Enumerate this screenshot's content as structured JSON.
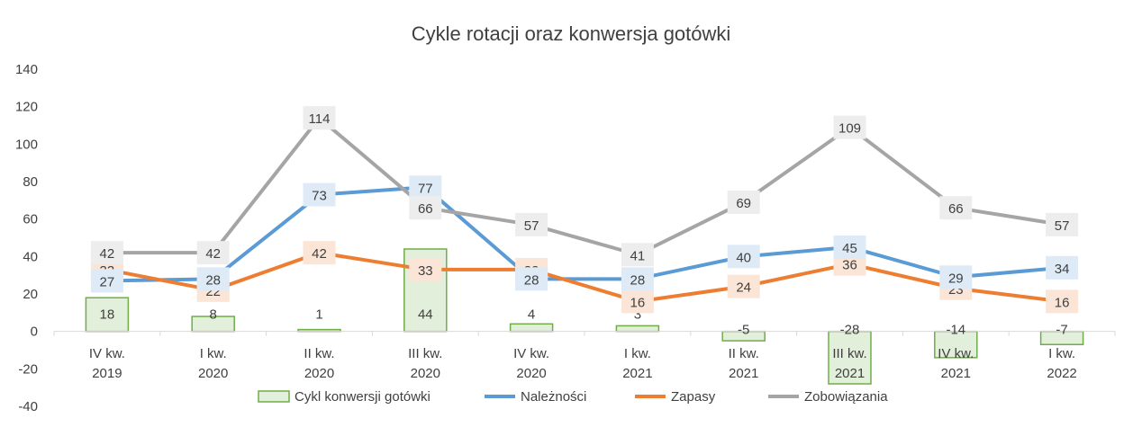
{
  "chart_data": {
    "type": "bar",
    "title": "Cykle rotacji oraz konwersja gotówki",
    "categories": [
      [
        "IV kw.",
        "2019"
      ],
      [
        "I kw.",
        "2020"
      ],
      [
        "II kw.",
        "2020"
      ],
      [
        "III kw.",
        "2020"
      ],
      [
        "IV kw.",
        "2020"
      ],
      [
        "I kw.",
        "2021"
      ],
      [
        "II kw.",
        "2021"
      ],
      [
        "III kw.",
        "2021"
      ],
      [
        "IV kw.",
        "2021"
      ],
      [
        "I kw.",
        "2022"
      ]
    ],
    "ylim": [
      -40,
      140
    ],
    "yticks": [
      -40,
      -20,
      0,
      20,
      40,
      60,
      80,
      100,
      120,
      140
    ],
    "grid": false,
    "legend_position": "bottom",
    "series": [
      {
        "name": "Cykl konwersji gotówki",
        "type": "bar",
        "color": "#70AD47",
        "fill": "#E2EFDA",
        "values": [
          18,
          8,
          1,
          44,
          4,
          3,
          -5,
          -28,
          -14,
          -7
        ]
      },
      {
        "name": "Należności",
        "type": "line",
        "color": "#5B9BD5",
        "label_bg": "#DEEBF7",
        "values": [
          27,
          28,
          73,
          77,
          28,
          28,
          40,
          45,
          29,
          34
        ]
      },
      {
        "name": "Zapasy",
        "type": "line",
        "color": "#ED7D31",
        "label_bg": "#FBE5D6",
        "values": [
          33,
          22,
          42,
          33,
          33,
          16,
          24,
          36,
          23,
          16
        ]
      },
      {
        "name": "Zobowiązania",
        "type": "line",
        "color": "#A5A5A5",
        "label_bg": "#EDEDED",
        "values": [
          42,
          42,
          114,
          66,
          57,
          41,
          69,
          109,
          66,
          57
        ]
      }
    ]
  }
}
